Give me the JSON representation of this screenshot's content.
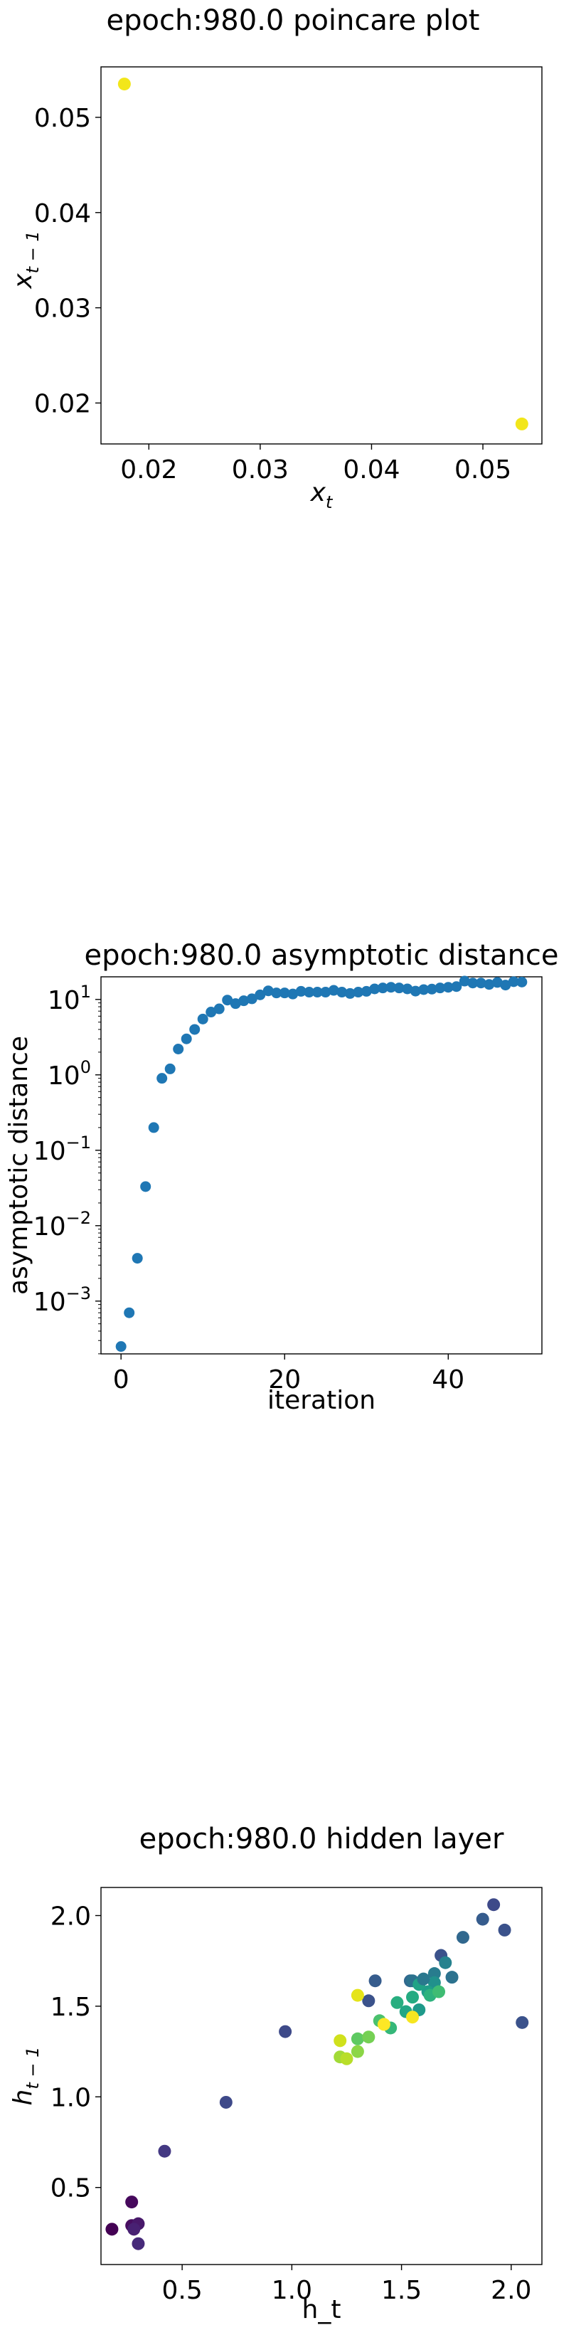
{
  "chart_data": [
    {
      "type": "scatter",
      "title": "epoch:980.0 poincare plot",
      "xlabel": "x",
      "xlabel_sub": "t",
      "ylabel": "x",
      "ylabel_sub": "t − 1",
      "xlim": [
        0.0157,
        0.0553
      ],
      "ylim": [
        0.0157,
        0.0553
      ],
      "xticks": [
        0.02,
        0.03,
        0.04,
        0.05
      ],
      "yticks": [
        0.02,
        0.03,
        0.04,
        0.05
      ],
      "xtick_labels": [
        "0.02",
        "0.03",
        "0.04",
        "0.05"
      ],
      "ytick_labels": [
        "0.02",
        "0.03",
        "0.04",
        "0.05"
      ],
      "points": [
        {
          "x": 0.0178,
          "y": 0.0535,
          "color": "#f2e61a"
        },
        {
          "x": 0.0535,
          "y": 0.0178,
          "color": "#f2e61a"
        }
      ]
    },
    {
      "type": "scatter",
      "title": "epoch:980.0 asymptotic distance",
      "xlabel": "iteration",
      "ylabel": "asymptotic distance",
      "yscale": "log",
      "xlim": [
        -2.45,
        51.45
      ],
      "ylim_log10": [
        -3.7,
        1.3
      ],
      "xticks": [
        0,
        20,
        40
      ],
      "xtick_labels": [
        "0",
        "20",
        "40"
      ],
      "yticks_log10": [
        -3,
        -2,
        -1,
        0,
        1
      ],
      "ytick_bases": [
        "10",
        "10",
        "10",
        "10",
        "10"
      ],
      "ytick_exps": [
        "−3",
        "−2",
        "−1",
        "0",
        "1"
      ],
      "color": "#1f77b4",
      "x": [
        0,
        1,
        2,
        3,
        4,
        5,
        6,
        7,
        8,
        9,
        10,
        11,
        12,
        13,
        14,
        15,
        16,
        17,
        18,
        19,
        20,
        21,
        22,
        23,
        24,
        25,
        26,
        27,
        28,
        29,
        30,
        31,
        32,
        33,
        34,
        35,
        36,
        37,
        38,
        39,
        40,
        41,
        42,
        43,
        44,
        45,
        46,
        47,
        48,
        49
      ],
      "y": [
        0.00025,
        0.0007,
        0.0037,
        0.033,
        0.2,
        0.9,
        1.2,
        2.2,
        3.0,
        4.0,
        5.5,
        6.8,
        7.5,
        9.8,
        8.8,
        9.6,
        10.2,
        11.5,
        13.0,
        12.2,
        12.2,
        11.8,
        12.8,
        12.5,
        12.5,
        12.5,
        13.2,
        12.5,
        12.0,
        12.5,
        12.8,
        13.8,
        14.2,
        14.5,
        14.2,
        13.8,
        12.9,
        13.5,
        13.7,
        14.2,
        14.5,
        14.8,
        17.5,
        16.5,
        16.5,
        15.8,
        16.8,
        15.5,
        17.2,
        17.0
      ]
    },
    {
      "type": "scatter",
      "title": "epoch:980.0 hidden layer",
      "xlabel": "h_t",
      "ylabel": "h",
      "ylabel_sub": "t − 1",
      "xlim": [
        0.13,
        2.14
      ],
      "ylim": [
        0.075,
        2.155
      ],
      "xticks": [
        0.5,
        1.0,
        1.5,
        2.0
      ],
      "yticks": [
        0.5,
        1.0,
        1.5,
        2.0
      ],
      "xtick_labels": [
        "0.5",
        "1.0",
        "1.5",
        "2.0"
      ],
      "ytick_labels": [
        "0.5",
        "1.0",
        "1.5",
        "2.0"
      ],
      "points": [
        {
          "x": 0.18,
          "y": 0.27,
          "color": "#440154"
        },
        {
          "x": 0.27,
          "y": 0.42,
          "color": "#46085c"
        },
        {
          "x": 0.27,
          "y": 0.29,
          "color": "#470d60"
        },
        {
          "x": 0.3,
          "y": 0.3,
          "color": "#48186a"
        },
        {
          "x": 0.28,
          "y": 0.27,
          "color": "#482173"
        },
        {
          "x": 0.3,
          "y": 0.19,
          "color": "#472a7a"
        },
        {
          "x": 0.42,
          "y": 0.7,
          "color": "#443983"
        },
        {
          "x": 0.7,
          "y": 0.97,
          "color": "#3e4989"
        },
        {
          "x": 0.97,
          "y": 1.36,
          "color": "#3e4a89"
        },
        {
          "x": 1.35,
          "y": 1.53,
          "color": "#3b528b"
        },
        {
          "x": 1.38,
          "y": 1.64,
          "color": "#365c8d"
        },
        {
          "x": 1.54,
          "y": 1.64,
          "color": "#31688e"
        },
        {
          "x": 1.55,
          "y": 1.64,
          "color": "#2c728e"
        },
        {
          "x": 1.65,
          "y": 1.68,
          "color": "#287c8e"
        },
        {
          "x": 1.68,
          "y": 1.78,
          "color": "#3b528b"
        },
        {
          "x": 1.78,
          "y": 1.88,
          "color": "#31688e"
        },
        {
          "x": 1.87,
          "y": 1.98,
          "color": "#365c8d"
        },
        {
          "x": 1.92,
          "y": 2.06,
          "color": "#3e4a89"
        },
        {
          "x": 1.97,
          "y": 1.92,
          "color": "#3b528b"
        },
        {
          "x": 2.05,
          "y": 1.41,
          "color": "#3b528b"
        },
        {
          "x": 1.73,
          "y": 1.66,
          "color": "#2c728e"
        },
        {
          "x": 1.7,
          "y": 1.74,
          "color": "#26828e"
        },
        {
          "x": 1.65,
          "y": 1.63,
          "color": "#21918c"
        },
        {
          "x": 1.62,
          "y": 1.58,
          "color": "#1f9e89"
        },
        {
          "x": 1.58,
          "y": 1.62,
          "color": "#20a386"
        },
        {
          "x": 1.55,
          "y": 1.55,
          "color": "#25ab82"
        },
        {
          "x": 1.52,
          "y": 1.47,
          "color": "#22a785"
        },
        {
          "x": 1.6,
          "y": 1.65,
          "color": "#2a788e"
        },
        {
          "x": 1.58,
          "y": 1.48,
          "color": "#1f9a8a"
        },
        {
          "x": 1.48,
          "y": 1.52,
          "color": "#28ae80"
        },
        {
          "x": 1.45,
          "y": 1.38,
          "color": "#35b779"
        },
        {
          "x": 1.63,
          "y": 1.56,
          "color": "#2db27d"
        },
        {
          "x": 1.67,
          "y": 1.58,
          "color": "#3fbc73"
        },
        {
          "x": 1.4,
          "y": 1.42,
          "color": "#4ac16d"
        },
        {
          "x": 1.3,
          "y": 1.32,
          "color": "#5ec962"
        },
        {
          "x": 1.35,
          "y": 1.33,
          "color": "#75d054"
        },
        {
          "x": 1.3,
          "y": 1.25,
          "color": "#8bd646"
        },
        {
          "x": 1.22,
          "y": 1.22,
          "color": "#a2da37"
        },
        {
          "x": 1.25,
          "y": 1.21,
          "color": "#b8de29"
        },
        {
          "x": 1.22,
          "y": 1.31,
          "color": "#d0e11c"
        },
        {
          "x": 1.3,
          "y": 1.56,
          "color": "#e5e419"
        },
        {
          "x": 1.42,
          "y": 1.4,
          "color": "#fde725"
        },
        {
          "x": 1.55,
          "y": 1.44,
          "color": "#f6e620"
        }
      ]
    }
  ]
}
